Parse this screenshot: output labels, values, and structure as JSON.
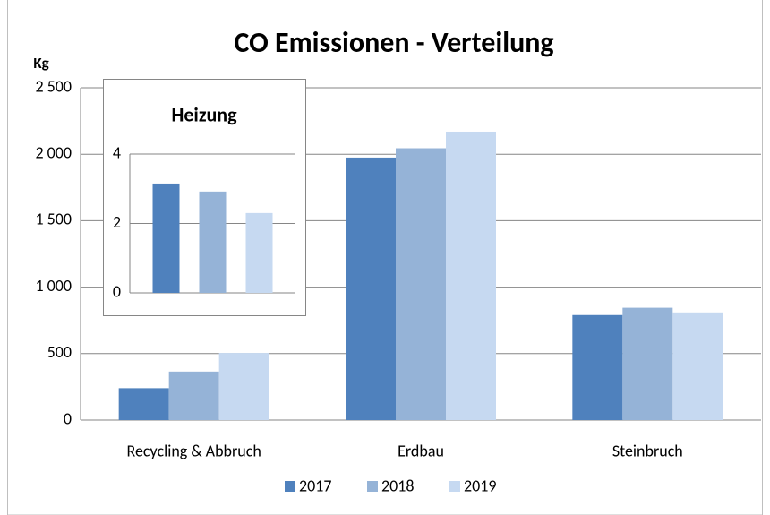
{
  "chart_data": [
    {
      "type": "bar",
      "title": "CO Emissionen - Verteilung",
      "y_label": "Kg",
      "categories": [
        "Recycling & Abbruch",
        "Erdbau",
        "Steinbruch"
      ],
      "series": [
        {
          "name": "2017",
          "color": "#4f81bd",
          "values": [
            240,
            1975,
            790
          ]
        },
        {
          "name": "2018",
          "color": "#95b3d7",
          "values": [
            365,
            2045,
            845
          ]
        },
        {
          "name": "2019",
          "color": "#c6d9f1",
          "values": [
            505,
            2170,
            810
          ]
        }
      ],
      "ylim": [
        0,
        2500
      ],
      "yticks": [
        0,
        500,
        {
          "value": 1000,
          "label": "1 000"
        },
        {
          "value": 1500,
          "label": "1 500"
        },
        {
          "value": 2000,
          "label": "2 000"
        },
        {
          "value": 2500,
          "label": "2 500"
        }
      ],
      "grid": true,
      "legend": "bottom"
    },
    {
      "type": "bar",
      "title": "Heizung",
      "series": [
        {
          "color": "#4f81bd",
          "values": [
            3.15
          ]
        },
        {
          "color": "#95b3d7",
          "values": [
            2.92
          ]
        },
        {
          "color": "#c6d9f1",
          "values": [
            2.3
          ]
        }
      ],
      "ylim": [
        0,
        4
      ],
      "yticks": [
        0,
        2,
        4
      ],
      "grid": true
    }
  ]
}
